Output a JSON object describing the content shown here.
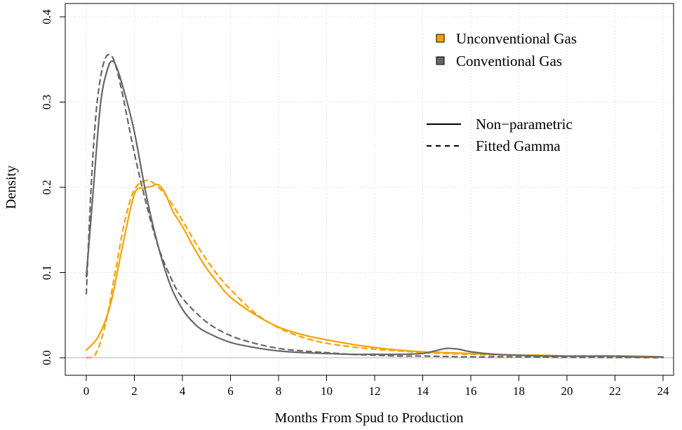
{
  "chart_data": {
    "type": "line",
    "xlabel": "Months From Spud to Production",
    "ylabel": "Density",
    "xlim": [
      0,
      24
    ],
    "ylim": [
      0,
      0.4
    ],
    "x_ticks": [
      0,
      2,
      4,
      6,
      8,
      10,
      12,
      14,
      16,
      18,
      20,
      22,
      24
    ],
    "y_ticks": [
      "0.0",
      "0.1",
      "0.2",
      "0.3",
      "0.4"
    ],
    "grid": true,
    "legend_colors": {
      "position": "top-right",
      "entries": [
        {
          "label": "Unconventional Gas",
          "color": "#F5A300"
        },
        {
          "label": "Conventional Gas",
          "color": "#666666"
        }
      ]
    },
    "legend_styles": {
      "position": "right",
      "entries": [
        {
          "label": "Non−parametric",
          "style": "solid"
        },
        {
          "label": "Fitted Gamma",
          "style": "dashed"
        }
      ]
    },
    "series": [
      {
        "group": "Unconventional Gas",
        "style": "solid",
        "color": "#F5A300",
        "x": [
          0,
          0.5,
          1,
          1.5,
          2,
          2.4,
          2.7,
          3,
          3.3,
          3.6,
          4,
          4.5,
          5,
          5.5,
          6,
          7,
          8,
          9,
          10,
          11,
          12,
          13,
          14,
          15,
          16,
          17,
          18,
          19,
          20,
          21,
          22,
          23,
          24
        ],
        "y": [
          0.009,
          0.025,
          0.062,
          0.13,
          0.192,
          0.199,
          0.201,
          0.203,
          0.192,
          0.172,
          0.154,
          0.128,
          0.105,
          0.087,
          0.071,
          0.051,
          0.036,
          0.027,
          0.021,
          0.016,
          0.012,
          0.009,
          0.007,
          0.006,
          0.005,
          0.004,
          0.003,
          0.003,
          0.002,
          0.002,
          0.002,
          0.002,
          0.001
        ]
      },
      {
        "group": "Unconventional Gas",
        "style": "dashed",
        "color": "#F5A300",
        "x": [
          0,
          0.4,
          0.8,
          1.2,
          1.6,
          2,
          2.5,
          3,
          3.5,
          4,
          4.5,
          5,
          5.5,
          6,
          7,
          8,
          9,
          10,
          11,
          12,
          13,
          14,
          15,
          16,
          17,
          18,
          19,
          20,
          21,
          22,
          23,
          24
        ],
        "y": [
          0,
          0.005,
          0.04,
          0.1,
          0.16,
          0.197,
          0.208,
          0.2,
          0.183,
          0.161,
          0.137,
          0.115,
          0.096,
          0.08,
          0.053,
          0.035,
          0.024,
          0.017,
          0.013,
          0.01,
          0.008,
          0.006,
          0.005,
          0.004,
          0.003,
          0.003,
          0.002,
          0.002,
          0.002,
          0.001,
          0.001,
          0.001
        ]
      },
      {
        "group": "Conventional Gas",
        "style": "solid",
        "color": "#666666",
        "x": [
          0,
          0.3,
          0.6,
          0.9,
          1.1,
          1.3,
          1.6,
          2,
          2.5,
          3,
          3.5,
          4,
          4.5,
          5,
          6,
          7,
          8,
          9,
          10,
          11,
          12,
          13,
          14,
          14.5,
          15,
          15.5,
          16,
          17,
          18,
          19,
          20,
          21,
          22,
          23,
          24
        ],
        "y": [
          0.095,
          0.2,
          0.3,
          0.34,
          0.348,
          0.338,
          0.31,
          0.265,
          0.19,
          0.13,
          0.085,
          0.057,
          0.04,
          0.03,
          0.018,
          0.012,
          0.008,
          0.006,
          0.005,
          0.004,
          0.004,
          0.004,
          0.005,
          0.008,
          0.011,
          0.01,
          0.007,
          0.004,
          0.003,
          0.002,
          0.002,
          0.002,
          0.002,
          0.001,
          0.001
        ]
      },
      {
        "group": "Conventional Gas",
        "style": "dashed",
        "color": "#666666",
        "x": [
          0,
          0.2,
          0.4,
          0.6,
          0.8,
          1,
          1.2,
          1.5,
          2,
          2.5,
          3,
          3.5,
          4,
          5,
          6,
          7,
          8,
          9,
          10,
          11,
          12,
          13,
          14,
          16,
          18,
          20,
          22,
          24
        ],
        "y": [
          0.075,
          0.2,
          0.285,
          0.33,
          0.352,
          0.355,
          0.345,
          0.31,
          0.24,
          0.18,
          0.13,
          0.095,
          0.07,
          0.042,
          0.026,
          0.017,
          0.011,
          0.008,
          0.006,
          0.004,
          0.003,
          0.002,
          0.002,
          0.001,
          0.001,
          0.0005,
          0.0003,
          0.0002
        ]
      }
    ]
  }
}
